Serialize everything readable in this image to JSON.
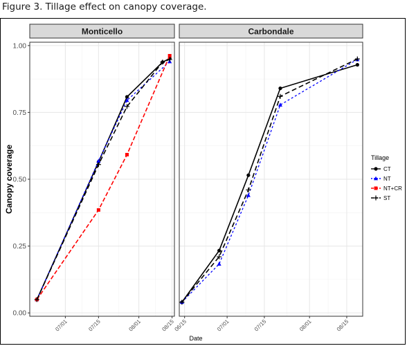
{
  "caption": "Figure 3. Tillage effect on canopy coverage.",
  "chart_data": {
    "type": "line",
    "xlabel": "Date",
    "ylabel": "Canopy coverage",
    "ylim": [
      0,
      1.0
    ],
    "yticks": [
      "0.00",
      "0.25",
      "0.50",
      "0.75",
      "1.00"
    ],
    "grid": true,
    "legend": {
      "title": "Tillage",
      "placement": "right",
      "entries": [
        "CT",
        "NT",
        "NT+CR",
        "ST"
      ]
    },
    "series_styles": {
      "CT": {
        "color": "#000000",
        "dash": "",
        "marker": "circle"
      },
      "NT": {
        "color": "#0000ff",
        "dash": "3,3",
        "marker": "triangle"
      },
      "NT+CR": {
        "color": "#ff0000",
        "dash": "6,3",
        "marker": "square"
      },
      "ST": {
        "color": "#000000",
        "dash": "7,4",
        "marker": "plus"
      }
    },
    "panels": [
      {
        "title": "Monticello",
        "xlim": [
          "2016-06-16",
          "2016-08-16"
        ],
        "xticks": [
          {
            "date": "2016-07-01",
            "label": "07/01"
          },
          {
            "date": "2016-07-15",
            "label": "07/15"
          },
          {
            "date": "2016-08-01",
            "label": "08/01"
          },
          {
            "date": "2016-08-15",
            "label": "08/15"
          }
        ],
        "series": [
          {
            "name": "CT",
            "x": [
              "2016-06-19",
              "2016-07-15",
              "2016-07-27",
              "2016-08-11",
              "2016-08-14"
            ],
            "y": [
              0.05,
              0.565,
              0.808,
              0.938,
              0.952
            ]
          },
          {
            "name": "NT",
            "x": [
              "2016-06-19",
              "2016-07-15",
              "2016-07-27",
              "2016-08-14"
            ],
            "y": [
              0.05,
              0.568,
              0.795,
              0.94
            ]
          },
          {
            "name": "NT+CR",
            "x": [
              "2016-06-19",
              "2016-07-15",
              "2016-07-27",
              "2016-08-14"
            ],
            "y": [
              0.05,
              0.385,
              0.592,
              0.962
            ]
          },
          {
            "name": "ST",
            "x": [
              "2016-06-19",
              "2016-07-15",
              "2016-07-27",
              "2016-08-11",
              "2016-08-14"
            ],
            "y": [
              0.05,
              0.555,
              0.772,
              0.938,
              0.948
            ]
          }
        ]
      },
      {
        "title": "Carbondale",
        "xlim": [
          "2016-06-13",
          "2016-08-21"
        ],
        "xticks": [
          {
            "date": "2016-06-15",
            "label": "06/15"
          },
          {
            "date": "2016-07-01",
            "label": "07/01"
          },
          {
            "date": "2016-07-15",
            "label": "07/15"
          },
          {
            "date": "2016-08-01",
            "label": "08/01"
          },
          {
            "date": "2016-08-15",
            "label": "08/15"
          }
        ],
        "series": [
          {
            "name": "CT",
            "x": [
              "2016-06-14",
              "2016-06-28",
              "2016-07-09",
              "2016-07-21",
              "2016-08-19"
            ],
            "y": [
              0.04,
              0.233,
              0.515,
              0.84,
              0.928
            ]
          },
          {
            "name": "NT",
            "x": [
              "2016-06-14",
              "2016-06-28",
              "2016-07-09",
              "2016-07-21",
              "2016-08-19"
            ],
            "y": [
              0.04,
              0.183,
              0.44,
              0.778,
              0.948
            ]
          },
          {
            "name": "ST",
            "x": [
              "2016-06-14",
              "2016-06-28",
              "2016-07-09",
              "2016-07-21",
              "2016-08-19"
            ],
            "y": [
              0.04,
              0.21,
              0.46,
              0.81,
              0.95
            ]
          }
        ]
      }
    ]
  }
}
